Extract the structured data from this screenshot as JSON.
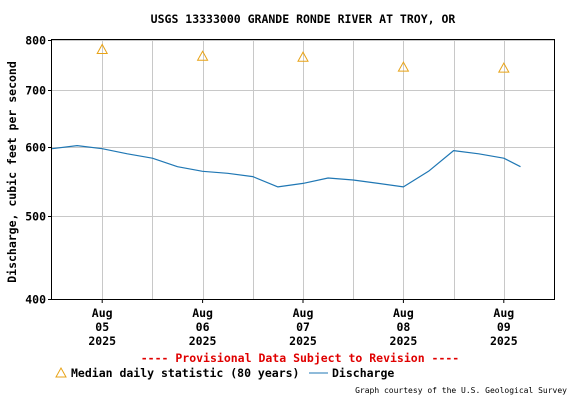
{
  "colors": {
    "discharge": "#1f77b4",
    "median": "#e8a317",
    "grid": "#c8c8c8",
    "provisional": "#e00000",
    "frame": "#000000"
  },
  "chart_data": {
    "type": "line",
    "title": "USGS 13333000 GRANDE RONDE RIVER AT TROY, OR",
    "ylabel": "Discharge, cubic feet per second",
    "yscale": "log",
    "ylim": [
      400,
      800
    ],
    "yticks": [
      "800",
      "700",
      "600",
      "500",
      "400"
    ],
    "xlim": [
      "2025-08-04 12:00",
      "2025-08-09 12:00"
    ],
    "xticks": [
      {
        "month": "Aug",
        "day": "05",
        "year": "2025"
      },
      {
        "month": "Aug",
        "day": "06",
        "year": "2025"
      },
      {
        "month": "Aug",
        "day": "07",
        "year": "2025"
      },
      {
        "month": "Aug",
        "day": "08",
        "year": "2025"
      },
      {
        "month": "Aug",
        "day": "09",
        "year": "2025"
      }
    ],
    "grid": true,
    "series": [
      {
        "name": "Median daily statistic (80 years)",
        "marker": "triangle",
        "x": [
          "2025-08-05 00:00",
          "2025-08-06 00:00",
          "2025-08-07 00:00",
          "2025-08-08 00:00",
          "2025-08-09 00:00"
        ],
        "y": [
          780,
          766,
          764,
          744,
          742
        ]
      },
      {
        "name": "Discharge",
        "x": [
          "2025-08-04 12:00",
          "2025-08-04 18:00",
          "2025-08-05 00:00",
          "2025-08-05 06:00",
          "2025-08-05 12:00",
          "2025-08-05 18:00",
          "2025-08-06 00:00",
          "2025-08-06 06:00",
          "2025-08-06 12:00",
          "2025-08-06 18:00",
          "2025-08-07 00:00",
          "2025-08-07 06:00",
          "2025-08-07 12:00",
          "2025-08-07 18:00",
          "2025-08-08 00:00",
          "2025-08-08 06:00",
          "2025-08-08 12:00",
          "2025-08-08 18:00",
          "2025-08-09 00:00",
          "2025-08-09 04:00"
        ],
        "y": [
          598,
          603,
          598,
          590,
          583,
          570,
          563,
          560,
          555,
          540,
          545,
          553,
          550,
          545,
          540,
          563,
          595,
          590,
          583,
          570
        ]
      }
    ],
    "legend": [
      "Median daily statistic (80 years)",
      "Discharge"
    ],
    "legend_position": "bottom"
  },
  "notice": "---- Provisional Data Subject to Revision ----",
  "credit": "Graph courtesy of the U.S. Geological Survey"
}
